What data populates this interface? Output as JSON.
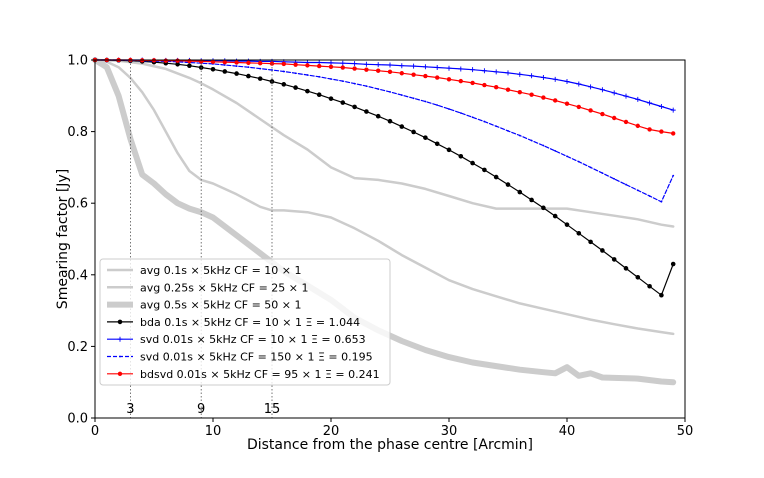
{
  "chart_data": {
    "type": "line",
    "xlabel": "Distance from the phase centre [Arcmin]",
    "ylabel": "Smearing factor [Jy]",
    "xlim": [
      0,
      50
    ],
    "ylim": [
      0,
      1.0
    ],
    "xticks": [
      0,
      10,
      20,
      30,
      40,
      50
    ],
    "yticks": [
      0.0,
      0.2,
      0.4,
      0.6,
      0.8,
      1.0
    ],
    "xtick_labels": [
      "0",
      "10",
      "20",
      "30",
      "40",
      "50"
    ],
    "ytick_labels": [
      "0.0",
      "0.2",
      "0.4",
      "0.6",
      "0.8",
      "1.0"
    ],
    "grid": false,
    "legend_position": "lower-left",
    "vlines": [
      {
        "x": 3,
        "label": "3"
      },
      {
        "x": 9,
        "label": "9"
      },
      {
        "x": 15,
        "label": "15"
      }
    ],
    "series": [
      {
        "name": "avg 0.1s × 5kHz CF = 10 × 1",
        "color": "#cccccc",
        "width": 2.5,
        "marker": "none",
        "x": [
          0,
          2,
          4,
          6,
          8,
          9,
          10,
          12,
          14,
          16,
          18,
          20,
          22,
          24,
          26,
          28,
          30,
          32,
          34,
          36,
          38,
          40,
          42,
          44,
          46,
          48,
          49
        ],
        "y": [
          1.0,
          0.998,
          0.99,
          0.975,
          0.95,
          0.935,
          0.918,
          0.88,
          0.835,
          0.79,
          0.75,
          0.7,
          0.67,
          0.665,
          0.655,
          0.64,
          0.62,
          0.6,
          0.585,
          0.585,
          0.585,
          0.585,
          0.575,
          0.565,
          0.555,
          0.54,
          0.535
        ]
      },
      {
        "name": "avg 0.25s × 5kHz CF = 25 × 1",
        "color": "#cccccc",
        "width": 2.5,
        "marker": "none",
        "x": [
          0,
          1,
          2,
          3,
          4,
          5,
          6,
          7,
          8,
          9,
          10,
          12,
          14,
          15,
          16,
          18,
          20,
          22,
          24,
          26,
          28,
          30,
          32,
          34,
          36,
          38,
          40,
          42,
          44,
          46,
          48,
          49
        ],
        "y": [
          1.0,
          0.995,
          0.98,
          0.95,
          0.91,
          0.86,
          0.8,
          0.74,
          0.69,
          0.665,
          0.655,
          0.625,
          0.59,
          0.58,
          0.58,
          0.575,
          0.56,
          0.53,
          0.495,
          0.455,
          0.42,
          0.385,
          0.36,
          0.34,
          0.32,
          0.305,
          0.29,
          0.275,
          0.262,
          0.25,
          0.24,
          0.235
        ]
      },
      {
        "name": "avg 0.5s × 5kHz CF = 50 × 1",
        "color": "#cccccc",
        "width": 6,
        "marker": "none",
        "x": [
          0,
          1,
          2,
          3,
          4,
          5,
          6,
          7,
          8,
          9,
          10,
          12,
          14,
          16,
          18,
          20,
          22,
          24,
          26,
          28,
          30,
          32,
          34,
          36,
          38,
          39,
          40,
          41,
          42,
          43,
          44,
          46,
          48,
          49
        ],
        "y": [
          1.0,
          0.98,
          0.9,
          0.78,
          0.68,
          0.655,
          0.625,
          0.6,
          0.585,
          0.575,
          0.56,
          0.51,
          0.46,
          0.41,
          0.37,
          0.33,
          0.28,
          0.245,
          0.215,
          0.19,
          0.17,
          0.155,
          0.145,
          0.135,
          0.128,
          0.125,
          0.142,
          0.118,
          0.125,
          0.113,
          0.112,
          0.11,
          0.102,
          0.1
        ]
      },
      {
        "name": "bda 0.1s × 5kHz CF = 10 × 1 Ξ = 1.044",
        "color": "#000000",
        "width": 1.2,
        "marker": "dot",
        "x": [
          0,
          1,
          2,
          3,
          4,
          5,
          6,
          7,
          8,
          9,
          10,
          11,
          12,
          13,
          14,
          15,
          16,
          17,
          18,
          19,
          20,
          21,
          22,
          23,
          24,
          25,
          26,
          27,
          28,
          29,
          30,
          31,
          32,
          33,
          34,
          35,
          36,
          37,
          38,
          39,
          40,
          41,
          42,
          43,
          44,
          45,
          46,
          47,
          48,
          49
        ],
        "y": [
          1.0,
          1.0,
          0.999,
          0.998,
          0.996,
          0.994,
          0.991,
          0.988,
          0.984,
          0.979,
          0.974,
          0.968,
          0.962,
          0.955,
          0.948,
          0.94,
          0.932,
          0.923,
          0.913,
          0.903,
          0.892,
          0.881,
          0.869,
          0.856,
          0.843,
          0.829,
          0.814,
          0.799,
          0.783,
          0.766,
          0.749,
          0.731,
          0.712,
          0.693,
          0.673,
          0.652,
          0.631,
          0.609,
          0.587,
          0.564,
          0.54,
          0.516,
          0.492,
          0.468,
          0.443,
          0.418,
          0.393,
          0.368,
          0.343,
          0.43
        ]
      },
      {
        "name": "svd 0.01s × 5kHz CF = 10 × 1 Ξ = 0.653",
        "color": "#0000ff",
        "width": 1.2,
        "marker": "plus",
        "x": [
          0,
          1,
          2,
          3,
          4,
          5,
          6,
          7,
          8,
          9,
          10,
          11,
          12,
          13,
          14,
          15,
          16,
          17,
          18,
          19,
          20,
          21,
          22,
          23,
          24,
          25,
          26,
          27,
          28,
          29,
          30,
          31,
          32,
          33,
          34,
          35,
          36,
          37,
          38,
          39,
          40,
          41,
          42,
          43,
          44,
          45,
          46,
          47,
          48,
          49
        ],
        "y": [
          1.0,
          1.0,
          1.0,
          1.0,
          1.0,
          0.999,
          0.999,
          0.999,
          0.999,
          0.998,
          0.998,
          0.998,
          0.997,
          0.997,
          0.996,
          0.996,
          0.995,
          0.994,
          0.993,
          0.993,
          0.992,
          0.991,
          0.99,
          0.988,
          0.987,
          0.986,
          0.984,
          0.983,
          0.981,
          0.979,
          0.977,
          0.975,
          0.973,
          0.97,
          0.967,
          0.964,
          0.96,
          0.956,
          0.951,
          0.946,
          0.94,
          0.933,
          0.925,
          0.917,
          0.908,
          0.899,
          0.89,
          0.88,
          0.87,
          0.86
        ]
      },
      {
        "name": "svd 0.01s × 5kHz CF = 150 × 1 Ξ = 0.195",
        "color": "#0000ff",
        "width": 1.2,
        "dash": "4,2",
        "marker": "tiny",
        "x": [
          0,
          1,
          2,
          3,
          4,
          5,
          6,
          7,
          8,
          9,
          10,
          11,
          12,
          13,
          14,
          15,
          16,
          17,
          18,
          19,
          20,
          21,
          22,
          23,
          24,
          25,
          26,
          27,
          28,
          29,
          30,
          31,
          32,
          33,
          34,
          35,
          36,
          37,
          38,
          39,
          40,
          41,
          42,
          43,
          44,
          45,
          46,
          47,
          48,
          49
        ],
        "y": [
          1.0,
          1.0,
          1.0,
          0.999,
          0.998,
          0.997,
          0.996,
          0.995,
          0.993,
          0.991,
          0.989,
          0.986,
          0.983,
          0.98,
          0.976,
          0.972,
          0.968,
          0.963,
          0.958,
          0.953,
          0.947,
          0.941,
          0.934,
          0.927,
          0.919,
          0.911,
          0.902,
          0.893,
          0.884,
          0.874,
          0.863,
          0.852,
          0.84,
          0.828,
          0.815,
          0.802,
          0.789,
          0.775,
          0.761,
          0.746,
          0.731,
          0.716,
          0.7,
          0.684,
          0.668,
          0.652,
          0.636,
          0.62,
          0.604,
          0.677
        ]
      },
      {
        "name": "bdsvd 0.01s × 5kHz CF = 95 × 1 Ξ = 0.241",
        "color": "#ff0000",
        "width": 1.2,
        "marker": "star",
        "x": [
          0,
          1,
          2,
          3,
          4,
          5,
          6,
          7,
          8,
          9,
          10,
          11,
          12,
          13,
          14,
          15,
          16,
          17,
          18,
          19,
          20,
          21,
          22,
          23,
          24,
          25,
          26,
          27,
          28,
          29,
          30,
          31,
          32,
          33,
          34,
          35,
          36,
          37,
          38,
          39,
          40,
          41,
          42,
          43,
          44,
          45,
          46,
          47,
          48,
          49
        ],
        "y": [
          1.0,
          1.0,
          1.0,
          1.0,
          0.999,
          0.999,
          0.998,
          0.998,
          0.997,
          0.996,
          0.995,
          0.994,
          0.993,
          0.992,
          0.991,
          0.99,
          0.989,
          0.987,
          0.985,
          0.983,
          0.981,
          0.979,
          0.976,
          0.973,
          0.97,
          0.967,
          0.963,
          0.959,
          0.955,
          0.951,
          0.946,
          0.941,
          0.936,
          0.93,
          0.924,
          0.917,
          0.91,
          0.903,
          0.895,
          0.887,
          0.878,
          0.869,
          0.859,
          0.849,
          0.838,
          0.827,
          0.816,
          0.806,
          0.8,
          0.795
        ]
      }
    ]
  }
}
